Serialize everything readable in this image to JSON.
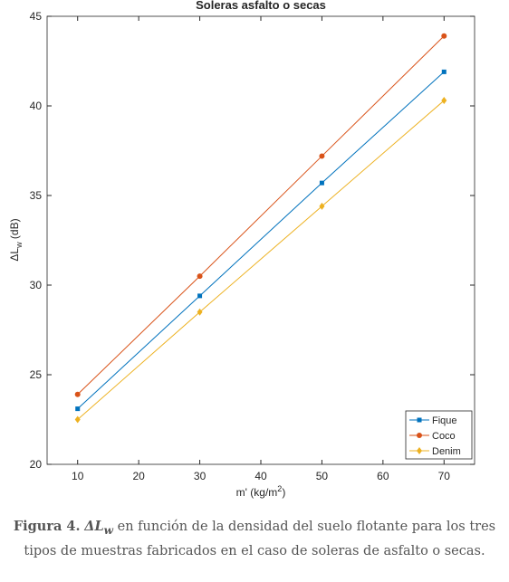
{
  "chart_data": {
    "type": "line",
    "title": "Soleras asfalto o secas",
    "ylabel": {
      "symbol": "ΔL",
      "sub": "w",
      "unit": " (dB)"
    },
    "xlabel": {
      "text": "m' (kg/m",
      "sup": "2",
      "end": ")"
    },
    "x": [
      10,
      30,
      50,
      70
    ],
    "series": [
      {
        "name": "Fique",
        "color": "#0072BD",
        "marker": "square",
        "values": [
          23.1,
          29.4,
          35.7,
          41.9
        ]
      },
      {
        "name": "Coco",
        "color": "#D95319",
        "marker": "circle",
        "values": [
          23.9,
          30.5,
          37.2,
          43.9
        ]
      },
      {
        "name": "Denim",
        "color": "#EDB120",
        "marker": "diamond",
        "values": [
          22.5,
          28.5,
          34.4,
          40.3
        ]
      }
    ],
    "xlim": [
      5,
      75
    ],
    "xticks": [
      10,
      20,
      30,
      40,
      50,
      60,
      70
    ],
    "ylim": [
      20,
      45
    ],
    "yticks": [
      20,
      25,
      30,
      35,
      40,
      45
    ],
    "grid": false,
    "legend": "lower right"
  },
  "caption": {
    "label": "Figura 4.",
    "symbol": "ΔL",
    "symbol_sub": "w",
    "text": "en función de la densidad del suelo flotante para los tres tipos de muestras fabricados en el caso de soleras de asfalto o secas."
  }
}
